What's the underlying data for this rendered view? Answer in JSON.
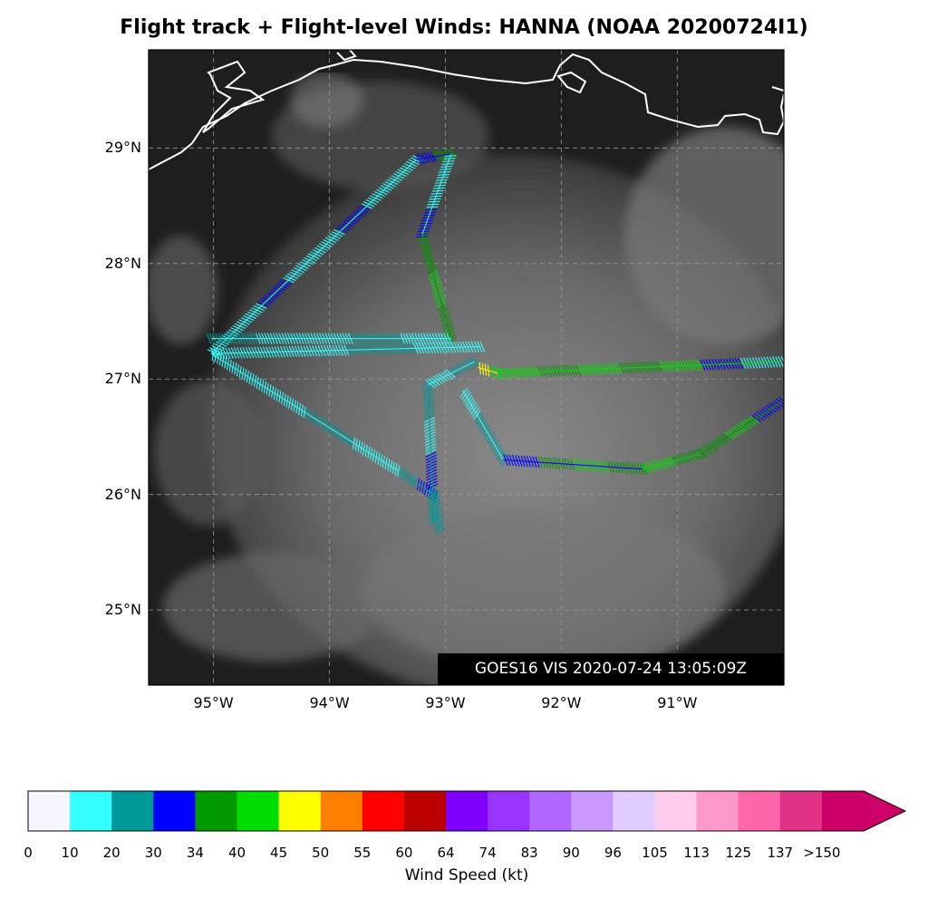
{
  "title": "Flight track + Flight-level Winds: HANNA (NOAA 20200724I1)",
  "stamp": "GOES16 VIS 2020-07-24 13:05:09Z",
  "map": {
    "lon_range": [
      -95.56,
      -90.08
    ],
    "lat_range": [
      24.35,
      29.85
    ],
    "lat_ticks": [
      {
        "value": 29,
        "label": "29°N"
      },
      {
        "value": 28,
        "label": "28°N"
      },
      {
        "value": 27,
        "label": "27°N"
      },
      {
        "value": 26,
        "label": "26°N"
      },
      {
        "value": 25,
        "label": "25°N"
      }
    ],
    "lon_ticks": [
      {
        "value": -95,
        "label": "95°W"
      },
      {
        "value": -94,
        "label": "94°W"
      },
      {
        "value": -93,
        "label": "93°W"
      },
      {
        "value": -92,
        "label": "92°W"
      },
      {
        "value": -91,
        "label": "91°W"
      }
    ],
    "grid": true,
    "coastline_color": "#ffffff",
    "background": "satellite visible imagery (grayscale clouds)"
  },
  "colorbar": {
    "label": "Wind Speed (kt)",
    "tick_labels": [
      "0",
      "10",
      "20",
      "30",
      "34",
      "40",
      "45",
      "50",
      "55",
      "60",
      "64",
      "74",
      "83",
      "90",
      "96",
      "105",
      "113",
      "125",
      "137",
      ">150"
    ],
    "colors": [
      "#f5f6ff",
      "#33ffff",
      "#009999",
      "#0000ff",
      "#009900",
      "#00dd00",
      "#ffff00",
      "#ff7f00",
      "#ff0000",
      "#bb0000",
      "#8000ff",
      "#9933ff",
      "#b066ff",
      "#c999ff",
      "#e0ccff",
      "#ffccee",
      "#ff99cc",
      "#ff66aa",
      "#e03388",
      "#cc0066"
    ]
  },
  "wind_legend_colors": {
    "10-20": "#33ffff",
    "20-30": "#009999",
    "30-34": "#0000ff",
    "34-40": "#009900",
    "40-45": "#00dd00",
    "45-50": "#ffff00"
  }
}
